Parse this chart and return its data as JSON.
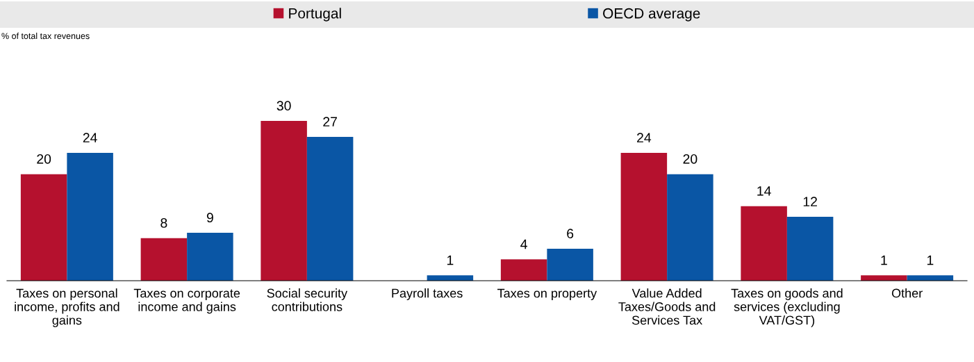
{
  "chart_data": {
    "type": "bar",
    "annotations": [
      "% of total tax revenues"
    ],
    "categories": [
      "Taxes on personal income, profits and gains",
      "Taxes on corporate income and gains",
      "Social security contributions",
      "Payroll taxes",
      "Taxes on property",
      "Value Added Taxes/Goods and Services Tax",
      "Taxes on goods and services (excluding VAT/GST)",
      "Other"
    ],
    "series": [
      {
        "name": "Portugal",
        "color": "#b5112e",
        "values": [
          20,
          8,
          30,
          null,
          4,
          24,
          14,
          1
        ]
      },
      {
        "name": "OECD average",
        "color": "#0a56a5",
        "values": [
          24,
          9,
          27,
          1,
          6,
          20,
          12,
          1
        ]
      }
    ],
    "data_labels": true,
    "legend": "top",
    "grid": false
  }
}
